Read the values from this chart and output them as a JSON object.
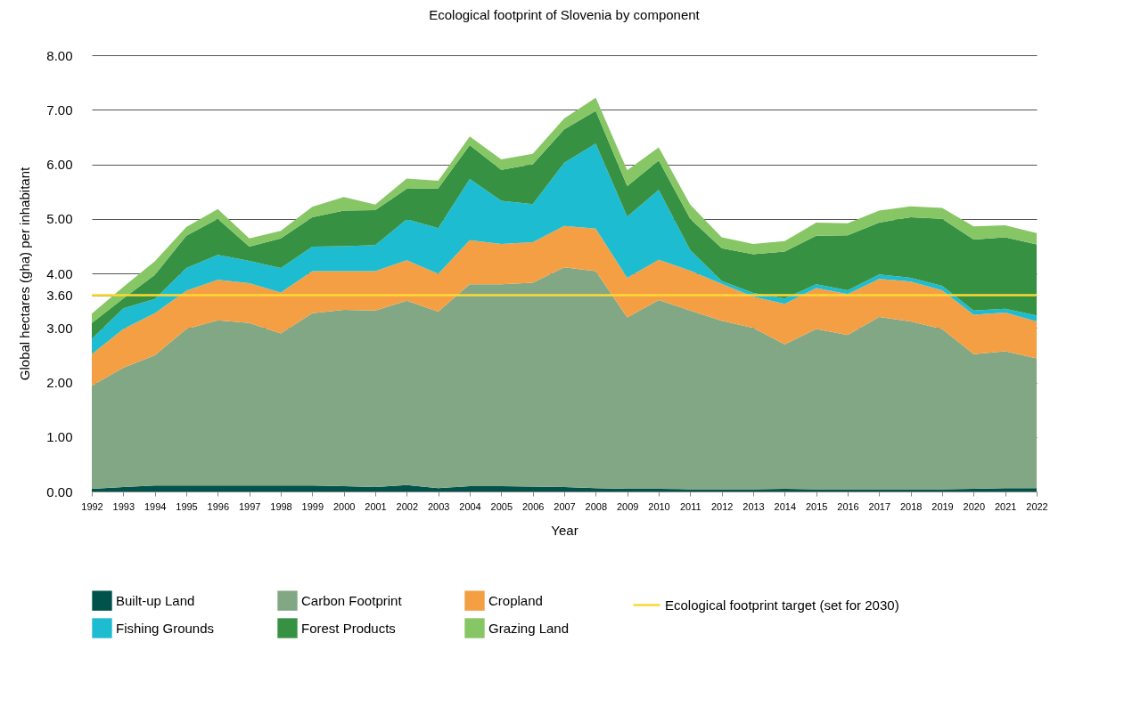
{
  "chart_data": {
    "type": "area",
    "stacked": true,
    "title": "Ecological footprint of Slovenia by component",
    "xlabel": "Year",
    "ylabel": "Global hectares (gha) per inhabitant",
    "categories": [
      "1992",
      "1993",
      "1994",
      "1995",
      "1996",
      "1997",
      "1998",
      "1999",
      "2000",
      "2001",
      "2002",
      "2003",
      "2004",
      "2005",
      "2006",
      "2007",
      "2008",
      "2009",
      "2010",
      "2011",
      "2012",
      "2013",
      "2014",
      "2015",
      "2016",
      "2017",
      "2018",
      "2019",
      "2020",
      "2021",
      "2022"
    ],
    "ylim": [
      0,
      8
    ],
    "yticks": [
      {
        "value": 0,
        "label": "0.00"
      },
      {
        "value": 1,
        "label": "1.00"
      },
      {
        "value": 2,
        "label": "2.00"
      },
      {
        "value": 3,
        "label": "3.00"
      },
      {
        "value": 3.6,
        "label": "3.60"
      },
      {
        "value": 4,
        "label": "4.00"
      },
      {
        "value": 5,
        "label": "5.00"
      },
      {
        "value": 6,
        "label": "6.00"
      },
      {
        "value": 7,
        "label": "7.00"
      },
      {
        "value": 8,
        "label": "8.00"
      }
    ],
    "grid": "y",
    "legend": "bottom",
    "series": [
      {
        "name": "Built-up Land",
        "color": "#00524a",
        "values": [
          0.05,
          0.08,
          0.11,
          0.11,
          0.11,
          0.11,
          0.11,
          0.11,
          0.1,
          0.08,
          0.12,
          0.06,
          0.1,
          0.1,
          0.09,
          0.08,
          0.06,
          0.05,
          0.05,
          0.04,
          0.04,
          0.04,
          0.05,
          0.04,
          0.04,
          0.04,
          0.04,
          0.04,
          0.05,
          0.06,
          0.06
        ]
      },
      {
        "name": "Carbon Footprint",
        "color": "#82a785",
        "values": [
          1.89,
          2.19,
          2.39,
          2.87,
          3.03,
          2.98,
          2.79,
          3.16,
          3.23,
          3.24,
          3.38,
          3.24,
          3.7,
          3.7,
          3.74,
          4.03,
          3.98,
          3.14,
          3.46,
          3.28,
          3.09,
          2.96,
          2.65,
          2.94,
          2.83,
          3.16,
          3.08,
          2.94,
          2.47,
          2.51,
          2.38
        ]
      },
      {
        "name": "Cropland",
        "color": "#f59f45",
        "values": [
          0.58,
          0.71,
          0.77,
          0.7,
          0.74,
          0.73,
          0.75,
          0.77,
          0.71,
          0.72,
          0.74,
          0.69,
          0.81,
          0.74,
          0.74,
          0.76,
          0.78,
          0.73,
          0.74,
          0.73,
          0.68,
          0.57,
          0.74,
          0.75,
          0.75,
          0.7,
          0.73,
          0.71,
          0.72,
          0.71,
          0.68
        ]
      },
      {
        "name": "Fishing Grounds",
        "color": "#1dbcd0",
        "values": [
          0.28,
          0.38,
          0.26,
          0.42,
          0.46,
          0.41,
          0.45,
          0.45,
          0.46,
          0.48,
          0.75,
          0.84,
          1.12,
          0.79,
          0.7,
          1.16,
          1.56,
          1.12,
          1.28,
          0.38,
          0.05,
          0.07,
          0.1,
          0.07,
          0.07,
          0.08,
          0.07,
          0.08,
          0.08,
          0.07,
          0.11
        ]
      },
      {
        "name": "Forest Products",
        "color": "#379142",
        "values": [
          0.29,
          0.18,
          0.44,
          0.59,
          0.66,
          0.26,
          0.54,
          0.54,
          0.65,
          0.64,
          0.56,
          0.73,
          0.62,
          0.57,
          0.73,
          0.61,
          0.6,
          0.56,
          0.54,
          0.57,
          0.6,
          0.71,
          0.86,
          0.89,
          1.01,
          0.95,
          1.11,
          1.23,
          1.3,
          1.31,
          1.3
        ]
      },
      {
        "name": "Grazing Land",
        "color": "#86c664",
        "values": [
          0.17,
          0.21,
          0.25,
          0.16,
          0.18,
          0.15,
          0.14,
          0.19,
          0.25,
          0.1,
          0.19,
          0.14,
          0.16,
          0.19,
          0.19,
          0.2,
          0.24,
          0.29,
          0.24,
          0.26,
          0.2,
          0.19,
          0.19,
          0.24,
          0.22,
          0.22,
          0.2,
          0.2,
          0.24,
          0.22,
          0.21
        ]
      }
    ],
    "ref_lines": [
      {
        "axis": "y",
        "value": 3.6,
        "label": "Ecological footprint target (set for 2030)",
        "color": "#fdd835"
      }
    ]
  }
}
